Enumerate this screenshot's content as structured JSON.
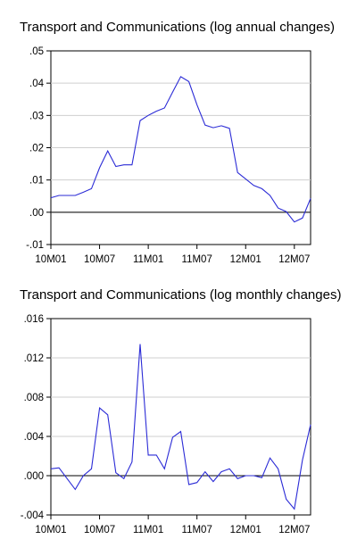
{
  "chart_data": [
    {
      "type": "line",
      "title": "Transport and Communications (log annual changes)",
      "xlabel": "",
      "ylabel": "",
      "x_ticks": [
        "10M01",
        "10M07",
        "11M01",
        "11M07",
        "12M01",
        "12M07"
      ],
      "y_ticks": [
        ".05",
        ".04",
        ".03",
        ".02",
        ".01",
        ".00",
        "-.01"
      ],
      "ylim": [
        -0.01,
        0.05
      ],
      "grid": true,
      "zero_line": true,
      "line_color": "#2b2bd6",
      "series": [
        {
          "x": [
            "10M01",
            "10M02",
            "10M03",
            "10M04",
            "10M05",
            "10M06",
            "10M07",
            "10M08",
            "10M09",
            "10M10",
            "10M11",
            "10M12",
            "11M01",
            "11M02",
            "11M03",
            "11M04",
            "11M05",
            "11M06",
            "11M07",
            "11M08",
            "11M09",
            "11M10",
            "11M11",
            "11M12",
            "12M01",
            "12M02",
            "12M03",
            "12M04",
            "12M05",
            "12M06",
            "12M07",
            "12M08",
            "12M09"
          ],
          "values": [
            0.0045,
            0.0052,
            0.0052,
            0.0052,
            0.0062,
            0.0073,
            0.0138,
            0.019,
            0.0142,
            0.0147,
            0.0147,
            0.0284,
            0.03,
            0.0313,
            0.0323,
            0.0372,
            0.042,
            0.0405,
            0.0333,
            0.027,
            0.0262,
            0.0268,
            0.026,
            0.0123,
            0.0103,
            0.0083,
            0.0073,
            0.0052,
            0.0013,
            0.0002,
            -0.003,
            -0.0018,
            0.0043
          ]
        }
      ]
    },
    {
      "type": "line",
      "title": "Transport and Communications (log monthly changes)",
      "xlabel": "",
      "ylabel": "",
      "x_ticks": [
        "10M01",
        "10M07",
        "11M01",
        "11M07",
        "12M01",
        "12M07"
      ],
      "y_ticks": [
        ".016",
        ".012",
        ".008",
        ".004",
        ".000",
        "-.004"
      ],
      "ylim": [
        -0.004,
        0.016
      ],
      "grid": true,
      "zero_line": true,
      "line_color": "#2b2bd6",
      "series": [
        {
          "x": [
            "10M01",
            "10M02",
            "10M03",
            "10M04",
            "10M05",
            "10M06",
            "10M07",
            "10M08",
            "10M09",
            "10M10",
            "10M11",
            "10M12",
            "11M01",
            "11M02",
            "11M03",
            "11M04",
            "11M05",
            "11M06",
            "11M07",
            "11M08",
            "11M09",
            "11M10",
            "11M11",
            "11M12",
            "12M01",
            "12M02",
            "12M03",
            "12M04",
            "12M05",
            "12M06",
            "12M07",
            "12M08",
            "12M09"
          ],
          "values": [
            0.0007,
            0.0008,
            -0.0003,
            -0.0014,
            0.0,
            0.0007,
            0.0069,
            0.0062,
            0.0003,
            -0.0003,
            0.0014,
            0.0134,
            0.0021,
            0.0021,
            0.0007,
            0.0039,
            0.0045,
            -0.0009,
            -0.0007,
            0.0004,
            -0.0006,
            0.0004,
            0.0007,
            -0.0003,
            0.0,
            0.0,
            -0.0002,
            0.0018,
            0.0007,
            -0.0024,
            -0.0034,
            0.0016,
            0.0052
          ]
        }
      ]
    }
  ]
}
